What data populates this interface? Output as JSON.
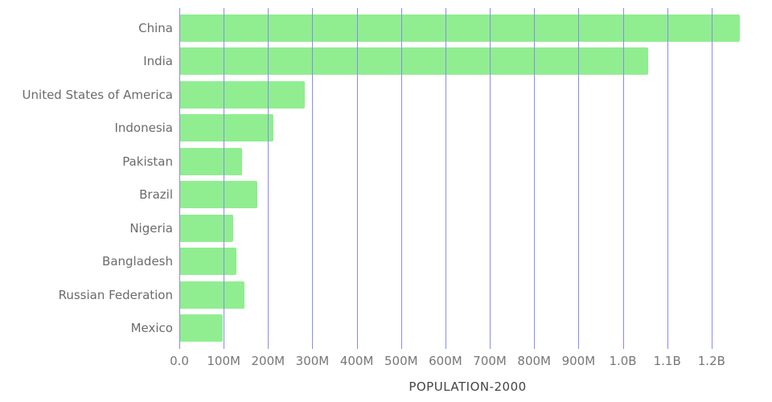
{
  "chart_data": {
    "type": "bar",
    "orientation": "horizontal",
    "title": "",
    "xlabel": "POPULATION-2000",
    "ylabel": "",
    "categories": [
      "China",
      "India",
      "United States of America",
      "Indonesia",
      "Pakistan",
      "Brazil",
      "Nigeria",
      "Bangladesh",
      "Russian Federation",
      "Mexico"
    ],
    "values": [
      1263000000,
      1057000000,
      282000000,
      212000000,
      142000000,
      175000000,
      122000000,
      129000000,
      147000000,
      98000000
    ],
    "xlim": [
      0,
      1300000000
    ],
    "x_ticks": [
      {
        "value": 0,
        "label": "0.0"
      },
      {
        "value": 100000000,
        "label": "100M"
      },
      {
        "value": 200000000,
        "label": "200M"
      },
      {
        "value": 300000000,
        "label": "300M"
      },
      {
        "value": 400000000,
        "label": "400M"
      },
      {
        "value": 500000000,
        "label": "500M"
      },
      {
        "value": 600000000,
        "label": "600M"
      },
      {
        "value": 700000000,
        "label": "700M"
      },
      {
        "value": 800000000,
        "label": "800M"
      },
      {
        "value": 900000000,
        "label": "900M"
      },
      {
        "value": 1000000000,
        "label": "1.0B"
      },
      {
        "value": 1100000000,
        "label": "1.1B"
      },
      {
        "value": 1200000000,
        "label": "1.2B"
      }
    ],
    "grid": true,
    "legend": false,
    "bar_color": "#90ee90",
    "grid_color": "#8a8aef",
    "tick_label_color": "#777777",
    "category_label_color": "#6b6b6b",
    "axis_title_color": "#444444",
    "background_color": "#ffffff"
  }
}
